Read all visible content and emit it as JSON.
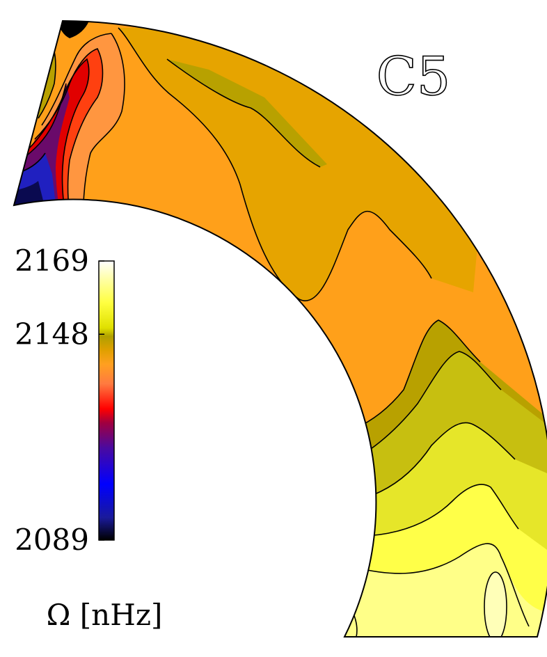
{
  "chart_data": {
    "type": "heatmap",
    "title": "C5",
    "colorbar": {
      "label": "Ω [nHz]",
      "min": 2089,
      "max": 2169,
      "ticks": [
        2169,
        2148,
        2089
      ],
      "stops": [
        "#000000",
        "#1a1a9a",
        "#0000ff",
        "#4a0aa0",
        "#a00040",
        "#ff0000",
        "#ff7a40",
        "#ffa020",
        "#e0a000",
        "#b0a000",
        "#e0e000",
        "#ffff40",
        "#ffffa0",
        "#ffffff"
      ]
    },
    "domain": {
      "shape": "meridional-quadrant",
      "colatitude_range_deg": [
        0,
        90
      ],
      "radius_range": [
        0.7,
        1.0
      ]
    },
    "fields": [
      {
        "region": "polar-corner",
        "value": 2089
      },
      {
        "region": "polar-band",
        "value": 2120
      },
      {
        "region": "high-latitude-column",
        "value": 2132
      },
      {
        "region": "mid-latitude-bulk",
        "value": 2137
      },
      {
        "region": "mid-latitude-tongue",
        "value": 2140
      },
      {
        "region": "surface-strip",
        "value": 2142
      },
      {
        "region": "equatorial-band-1",
        "value": 2146
      },
      {
        "region": "equatorial-band-2",
        "value": 2150
      },
      {
        "region": "equatorial-band-3",
        "value": 2156
      },
      {
        "region": "equatorial-band-4",
        "value": 2160
      },
      {
        "region": "equatorial-core",
        "value": 2162
      }
    ]
  }
}
